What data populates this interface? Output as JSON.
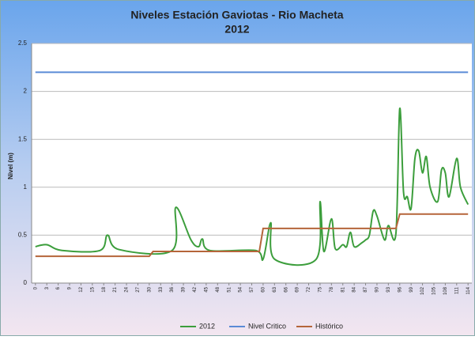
{
  "chart_data": {
    "type": "line",
    "title": "Niveles Estación Gaviotas - Rio Macheta",
    "subtitle": "2012",
    "y_label": "Nivel (m)",
    "series": [
      {
        "name": "2012",
        "color": "#3c9e3c",
        "x": [
          0,
          3,
          7,
          17,
          19,
          22,
          36,
          37,
          41,
          43,
          44,
          46,
          58,
          60,
          62,
          63,
          74,
          75,
          76,
          78,
          79,
          81,
          82,
          83,
          84,
          86,
          87,
          88,
          89,
          90,
          92,
          93,
          95,
          96,
          97,
          98,
          99,
          100,
          101,
          102,
          103,
          104,
          106,
          107,
          108,
          109,
          111,
          112,
          114
        ],
        "values": [
          0.38,
          0.4,
          0.34,
          0.34,
          0.5,
          0.35,
          0.34,
          0.79,
          0.45,
          0.38,
          0.46,
          0.34,
          0.34,
          0.25,
          0.63,
          0.25,
          0.25,
          0.85,
          0.33,
          0.67,
          0.36,
          0.4,
          0.38,
          0.53,
          0.38,
          0.42,
          0.45,
          0.5,
          0.75,
          0.7,
          0.45,
          0.6,
          0.52,
          1.82,
          0.95,
          0.9,
          0.78,
          1.3,
          1.38,
          1.15,
          1.32,
          1.0,
          0.85,
          1.18,
          1.15,
          0.9,
          1.3,
          1.0,
          0.82
        ]
      },
      {
        "name": "Nivel Critico",
        "color": "#5b8bd6",
        "x": [
          0,
          114
        ],
        "values": [
          2.2,
          2.2
        ]
      },
      {
        "name": "Histórico",
        "color": "#b5653a",
        "x": [
          0,
          30,
          31,
          59,
          60,
          95,
          96,
          114
        ],
        "values": [
          0.28,
          0.28,
          0.33,
          0.33,
          0.57,
          0.57,
          0.72,
          0.72
        ]
      }
    ],
    "xlim": [
      -1,
      115
    ],
    "xticks": [
      0,
      3,
      6,
      9,
      12,
      15,
      18,
      21,
      24,
      27,
      30,
      33,
      36,
      39,
      42,
      45,
      48,
      51,
      54,
      57,
      60,
      63,
      66,
      69,
      72,
      75,
      78,
      81,
      84,
      87,
      90,
      93,
      96,
      99,
      102,
      105,
      108,
      111,
      114
    ],
    "ylim": [
      0,
      2.5
    ],
    "yticks": [
      0,
      0.5,
      1,
      1.5,
      2,
      2.5
    ],
    "grid": true,
    "legend": "bottom"
  }
}
